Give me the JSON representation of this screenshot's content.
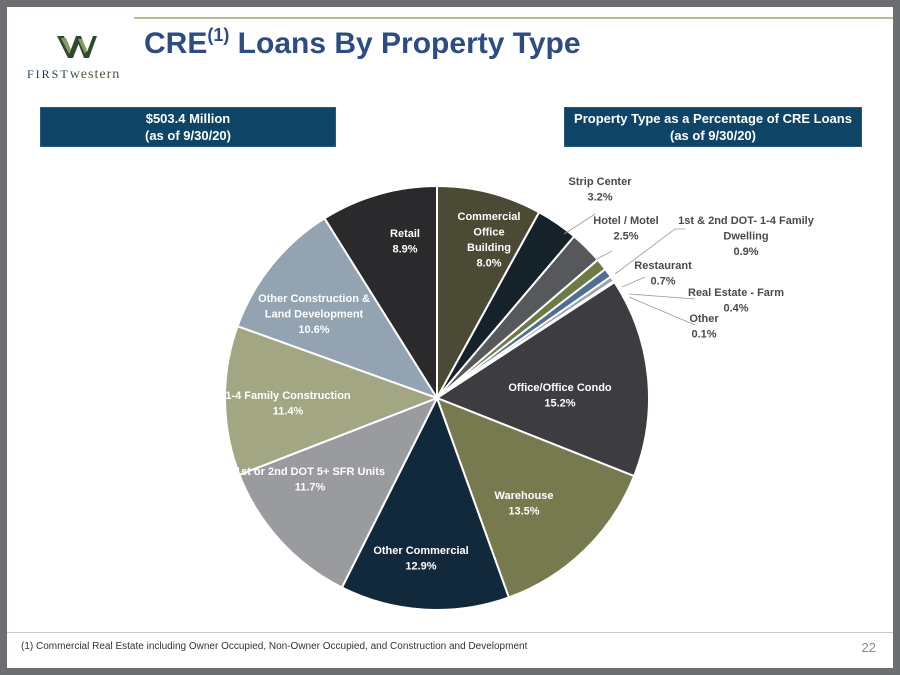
{
  "header": {
    "title_main": "CRE",
    "title_sup": "(1)",
    "title_rest": " Loans By Property Type"
  },
  "logo": {
    "first": "FIRST",
    "rest": "western"
  },
  "boxes": {
    "left_line1": "$503.4 Million",
    "left_line2": "(as of 9/30/20)",
    "right_line1": "Property Type as a Percentage of CRE Loans",
    "right_line2": "(as of 9/30/20)"
  },
  "footer": {
    "footnote": "(1)    Commercial Real Estate including Owner Occupied, Non-Owner Occupied, and Construction and Development",
    "page": "22"
  },
  "colors": {
    "title": "#2d4c84",
    "box": "#0e4567"
  },
  "chart_data": {
    "type": "pie",
    "start": "top, clockwise",
    "slices": [
      {
        "label": "Commercial Office Building",
        "value": 8.0,
        "display": "8.0%",
        "color": "#4a4a35"
      },
      {
        "label": "Strip Center",
        "value": 3.2,
        "display": "3.2%",
        "color": "#16222a"
      },
      {
        "label": "Hotel / Motel",
        "value": 2.5,
        "display": "2.5%",
        "color": "#57585b"
      },
      {
        "label": "1st & 2nd DOT- 1-4 Family Dwelling",
        "value": 0.9,
        "display": "0.9%",
        "color": "#6d7a45"
      },
      {
        "label": "Restaurant",
        "value": 0.7,
        "display": "0.7%",
        "color": "#4e6e92"
      },
      {
        "label": "Real Estate - Farm",
        "value": 0.4,
        "display": "0.4%",
        "color": "#9aa4ad"
      },
      {
        "label": "Other",
        "value": 0.1,
        "display": "0.1%",
        "color": "#c9cba8"
      },
      {
        "label": "Office/Office Condo",
        "value": 15.2,
        "display": "15.2%",
        "color": "#3d3c40"
      },
      {
        "label": "Warehouse",
        "value": 13.5,
        "display": "13.5%",
        "color": "#767a4e"
      },
      {
        "label": "Other Commercial",
        "value": 12.9,
        "display": "12.9%",
        "color": "#11293b"
      },
      {
        "label": "1st or 2nd DOT 5+ SFR Units",
        "value": 11.7,
        "display": "11.7%",
        "color": "#9a9b9e"
      },
      {
        "label": "1-4 Family Construction",
        "value": 11.4,
        "display": "11.4%",
        "color": "#a3a682"
      },
      {
        "label": "Other Construction & Land Development",
        "value": 10.6,
        "display": "10.6%",
        "color": "#93a3b2"
      },
      {
        "label": "Retail",
        "value": 8.9,
        "display": "8.9%",
        "color": "#2a2a2d"
      }
    ]
  }
}
